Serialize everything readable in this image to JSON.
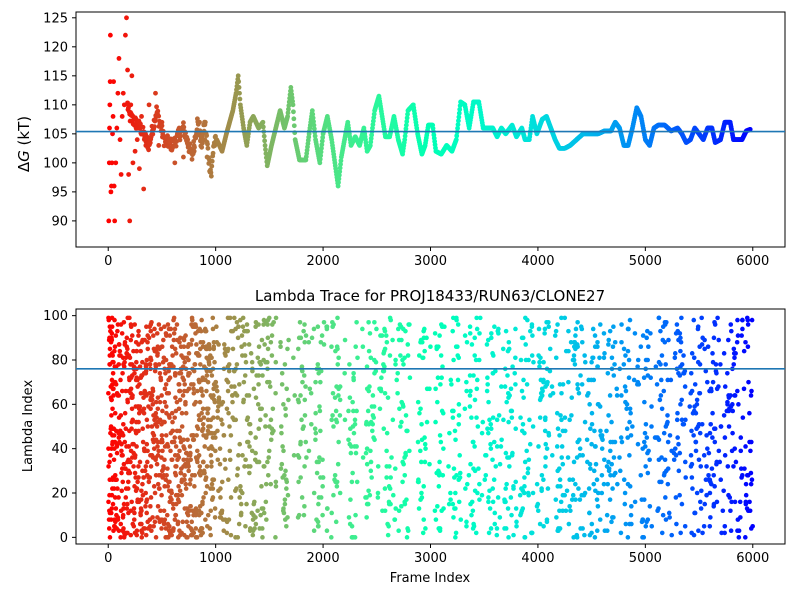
{
  "chart_data": [
    {
      "type": "scatter",
      "title": "",
      "xlabel": "",
      "ylabel": "ΔG (kT)",
      "ylabel_parts": {
        "prefix": "Δ",
        "symbol": "G",
        "unit": " (kT)"
      },
      "xlim": [
        -300,
        6300
      ],
      "ylim": [
        85.5,
        126
      ],
      "xticks": [
        0,
        1000,
        2000,
        3000,
        4000,
        5000,
        6000
      ],
      "yticks": [
        90,
        95,
        100,
        105,
        110,
        115,
        120,
        125
      ],
      "hline": 105.4,
      "hline_color": "#1f77b4",
      "colormap": "rainbow",
      "color_scale": "reversed frame index",
      "x_start": 0,
      "x_end": 6000,
      "trace": [
        [
          180,
          110
        ],
        [
          200,
          108
        ],
        [
          300,
          106
        ],
        [
          380,
          103
        ],
        [
          450,
          109
        ],
        [
          520,
          104
        ],
        [
          600,
          103
        ],
        [
          700,
          106
        ],
        [
          780,
          101
        ],
        [
          830,
          107
        ],
        [
          870,
          103
        ],
        [
          900,
          107
        ],
        [
          940,
          100
        ],
        [
          960,
          98
        ],
        [
          980,
          103
        ],
        [
          1010,
          104
        ],
        [
          1060,
          102
        ],
        [
          1100,
          105
        ],
        [
          1130,
          107
        ],
        [
          1160,
          109
        ],
        [
          1190,
          112
        ],
        [
          1210,
          115
        ],
        [
          1230,
          110
        ],
        [
          1260,
          106
        ],
        [
          1290,
          103
        ],
        [
          1320,
          107
        ],
        [
          1350,
          108
        ],
        [
          1400,
          106
        ],
        [
          1440,
          107
        ],
        [
          1460,
          103
        ],
        [
          1480,
          99.5
        ],
        [
          1520,
          103
        ],
        [
          1560,
          106
        ],
        [
          1600,
          109
        ],
        [
          1640,
          106
        ],
        [
          1670,
          108
        ],
        [
          1700,
          113
        ],
        [
          1720,
          110
        ],
        [
          1740,
          104
        ],
        [
          1780,
          100.5
        ],
        [
          1840,
          100.5
        ],
        [
          1870,
          105
        ],
        [
          1900,
          109
        ],
        [
          1930,
          104
        ],
        [
          1950,
          102
        ],
        [
          1970,
          100
        ],
        [
          2000,
          105
        ],
        [
          2040,
          108
        ],
        [
          2080,
          104
        ],
        [
          2110,
          100
        ],
        [
          2140,
          96
        ],
        [
          2170,
          101
        ],
        [
          2200,
          104
        ],
        [
          2230,
          107
        ],
        [
          2260,
          103
        ],
        [
          2300,
          104.5
        ],
        [
          2340,
          103
        ],
        [
          2380,
          106
        ],
        [
          2410,
          102
        ],
        [
          2440,
          103
        ],
        [
          2480,
          109
        ],
        [
          2520,
          111.5
        ],
        [
          2550,
          108
        ],
        [
          2580,
          104.5
        ],
        [
          2620,
          104.5
        ],
        [
          2660,
          108
        ],
        [
          2700,
          104
        ],
        [
          2740,
          101.5
        ],
        [
          2760,
          104
        ],
        [
          2790,
          109
        ],
        [
          2840,
          110
        ],
        [
          2880,
          105
        ],
        [
          2920,
          101.5
        ],
        [
          2950,
          103
        ],
        [
          2980,
          106.5
        ],
        [
          3020,
          106.5
        ],
        [
          3050,
          102
        ],
        [
          3100,
          101.5
        ],
        [
          3150,
          103
        ],
        [
          3200,
          102
        ],
        [
          3240,
          104
        ],
        [
          3280,
          110.5
        ],
        [
          3320,
          110
        ],
        [
          3360,
          106
        ],
        [
          3400,
          110.5
        ],
        [
          3450,
          110.5
        ],
        [
          3490,
          106
        ],
        [
          3520,
          106
        ],
        [
          3580,
          106
        ],
        [
          3620,
          104.5
        ],
        [
          3660,
          106
        ],
        [
          3700,
          105
        ],
        [
          3760,
          106.5
        ],
        [
          3800,
          104.5
        ],
        [
          3850,
          106
        ],
        [
          3880,
          104
        ],
        [
          3920,
          104
        ],
        [
          3950,
          108
        ],
        [
          3990,
          105
        ],
        [
          4040,
          107.5
        ],
        [
          4080,
          108
        ],
        [
          4120,
          106
        ],
        [
          4160,
          104
        ],
        [
          4200,
          102.5
        ],
        [
          4250,
          102.5
        ],
        [
          4300,
          103
        ],
        [
          4360,
          104
        ],
        [
          4420,
          105
        ],
        [
          4500,
          105
        ],
        [
          4560,
          105
        ],
        [
          4620,
          105.5
        ],
        [
          4680,
          105.5
        ],
        [
          4720,
          107
        ],
        [
          4760,
          106
        ],
        [
          4800,
          103
        ],
        [
          4840,
          103
        ],
        [
          4880,
          106
        ],
        [
          4920,
          109.5
        ],
        [
          4960,
          108
        ],
        [
          5000,
          104
        ],
        [
          5040,
          103
        ],
        [
          5080,
          106
        ],
        [
          5120,
          106.5
        ],
        [
          5180,
          106.5
        ],
        [
          5240,
          105.5
        ],
        [
          5300,
          106
        ],
        [
          5340,
          105
        ],
        [
          5380,
          103.5
        ],
        [
          5420,
          104
        ],
        [
          5460,
          106
        ],
        [
          5500,
          105
        ],
        [
          5540,
          104
        ],
        [
          5580,
          106
        ],
        [
          5620,
          106
        ],
        [
          5650,
          103.5
        ],
        [
          5700,
          104
        ],
        [
          5740,
          107
        ],
        [
          5790,
          107
        ],
        [
          5820,
          104
        ],
        [
          5860,
          104
        ],
        [
          5900,
          104
        ],
        [
          5940,
          105.5
        ],
        [
          5980,
          105.8
        ]
      ],
      "scatter_points": [
        [
          5,
          90
        ],
        [
          10,
          100
        ],
        [
          12,
          106
        ],
        [
          15,
          110
        ],
        [
          18,
          114
        ],
        [
          20,
          122
        ],
        [
          25,
          95
        ],
        [
          30,
          96
        ],
        [
          35,
          100
        ],
        [
          40,
          105
        ],
        [
          45,
          108
        ],
        [
          50,
          114
        ],
        [
          55,
          96
        ],
        [
          60,
          90
        ],
        [
          70,
          100
        ],
        [
          80,
          106
        ],
        [
          90,
          112
        ],
        [
          100,
          118
        ],
        [
          110,
          104
        ],
        [
          120,
          98
        ],
        [
          130,
          108
        ],
        [
          140,
          112
        ],
        [
          150,
          110
        ],
        [
          160,
          122
        ],
        [
          170,
          125
        ],
        [
          180,
          116
        ],
        [
          190,
          98
        ],
        [
          200,
          90
        ],
        [
          210,
          110
        ],
        [
          220,
          115
        ],
        [
          230,
          100
        ],
        [
          250,
          102
        ],
        [
          270,
          104
        ],
        [
          290,
          99
        ],
        [
          310,
          108
        ],
        [
          330,
          95.5
        ],
        [
          350,
          103
        ],
        [
          380,
          110
        ],
        [
          410,
          105
        ],
        [
          440,
          112
        ],
        [
          470,
          103
        ],
        [
          500,
          107
        ],
        [
          540,
          103
        ],
        [
          580,
          104
        ],
        [
          620,
          100
        ],
        [
          660,
          106
        ],
        [
          700,
          101
        ],
        [
          740,
          104
        ],
        [
          800,
          102
        ],
        [
          850,
          107
        ],
        [
          900,
          104
        ],
        [
          920,
          101
        ]
      ]
    },
    {
      "type": "scatter",
      "title": "Lambda Trace for PROJ18433/RUN63/CLONE27",
      "xlabel": "Frame Index",
      "ylabel": "Lambda Index",
      "xlim": [
        -300,
        6300
      ],
      "ylim": [
        -3,
        103
      ],
      "xticks": [
        0,
        1000,
        2000,
        3000,
        4000,
        5000,
        6000
      ],
      "yticks": [
        0,
        20,
        40,
        60,
        80,
        100
      ],
      "hline": 76,
      "hline_color": "#1f77b4",
      "colormap": "rainbow",
      "color_scale": "reversed frame index",
      "y_min": 0,
      "y_max": 99,
      "x_start": 0,
      "x_end": 6000
    }
  ]
}
